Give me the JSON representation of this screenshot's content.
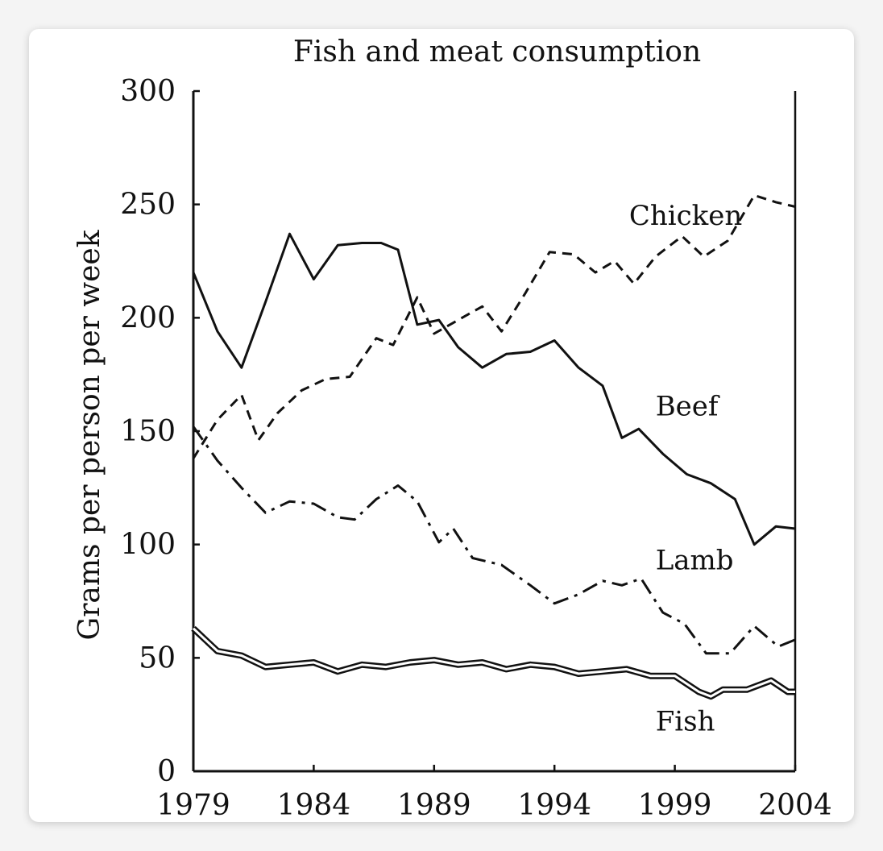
{
  "chart_data": {
    "type": "line",
    "title": "Fish and meat consumption",
    "xlabel": "",
    "ylabel": "Grams per person per week",
    "xlim": [
      1979,
      2004
    ],
    "ylim": [
      0,
      300
    ],
    "x_ticks": [
      "1979",
      "1984",
      "1989",
      "1994",
      "1999",
      "2004"
    ],
    "y_ticks": [
      "0",
      "50",
      "100",
      "150",
      "200",
      "250",
      "300"
    ],
    "grid": false,
    "legend": "inline labels",
    "x": [
      1979,
      1980,
      1981,
      1982,
      1983,
      1984,
      1985,
      1986,
      1987,
      1988,
      1989,
      1990,
      1991,
      1992,
      1993,
      1994,
      1995,
      1996,
      1997,
      1998,
      1999,
      2000,
      2001,
      2002,
      2003,
      2004
    ],
    "series": [
      {
        "name": "Beef",
        "style": "solid",
        "values": [
          220,
          194,
          178,
          207,
          237,
          217,
          232,
          233,
          233,
          230,
          197,
          199,
          187,
          178,
          184,
          185,
          190,
          178,
          170,
          147,
          151,
          140,
          131,
          127,
          120,
          100,
          108,
          107
        ],
        "x_values": [
          1979,
          1980,
          1981,
          1982,
          1983,
          1984,
          1985,
          1986,
          1986.8,
          1987.5,
          1988.3,
          1989.2,
          1990,
          1991,
          1992,
          1993,
          1994,
          1995,
          1996,
          1996.8,
          1997.5,
          1998.5,
          1999.5,
          2000.5,
          2001.5,
          2002.3,
          2003.2,
          2004
        ]
      },
      {
        "name": "Chicken",
        "style": "dashed",
        "values": [
          138,
          155,
          166,
          146,
          158,
          168,
          173,
          174,
          191,
          188,
          209,
          193,
          199,
          205,
          194,
          211,
          229,
          228,
          220,
          225,
          215,
          227,
          236,
          227,
          234,
          254,
          251,
          249
        ],
        "x_values": [
          1979,
          1980,
          1981,
          1981.7,
          1982.5,
          1983.5,
          1984.5,
          1985.5,
          1986.6,
          1987.3,
          1988.3,
          1989,
          1990,
          1991,
          1991.8,
          1992.8,
          1993.8,
          1994.8,
          1995.7,
          1996.5,
          1997.3,
          1998.2,
          1999.3,
          2000.2,
          2001.2,
          2002.3,
          2003.2,
          2004
        ]
      },
      {
        "name": "Lamb",
        "style": "dashdot",
        "values": [
          152,
          137,
          125,
          114,
          119,
          118,
          112,
          111,
          120,
          126,
          119,
          101,
          107,
          94,
          91,
          82,
          74,
          78,
          84,
          82,
          85,
          70,
          65,
          52,
          52,
          64,
          55,
          58
        ],
        "x_values": [
          1979,
          1980,
          1981,
          1982,
          1983,
          1984,
          1985,
          1985.7,
          1986.6,
          1987.5,
          1988.3,
          1989.2,
          1989.8,
          1990.6,
          1991.8,
          1993,
          1994,
          1995,
          1996,
          1996.8,
          1997.6,
          1998.5,
          1999.4,
          2000.3,
          2001.3,
          2002.3,
          2003.3,
          2004
        ]
      },
      {
        "name": "Fish",
        "style": "double",
        "values": [
          63,
          53,
          51,
          46,
          47,
          48,
          44,
          47,
          46,
          48,
          49,
          47,
          48,
          45,
          47,
          46,
          43,
          44,
          45,
          42,
          42,
          35,
          33,
          36,
          36,
          40,
          35,
          35
        ],
        "x_values": [
          1979,
          1980,
          1981,
          1982,
          1983,
          1984,
          1985,
          1986,
          1987,
          1988,
          1989,
          1990,
          1991,
          1992,
          1993,
          1994,
          1995,
          1996,
          1997,
          1998,
          1999,
          2000,
          2000.5,
          2001,
          2002,
          2003,
          2003.7,
          2004
        ]
      }
    ],
    "series_labels": {
      "Chicken": "Chicken",
      "Beef": "Beef",
      "Lamb": "Lamb",
      "Fish": "Fish"
    }
  }
}
